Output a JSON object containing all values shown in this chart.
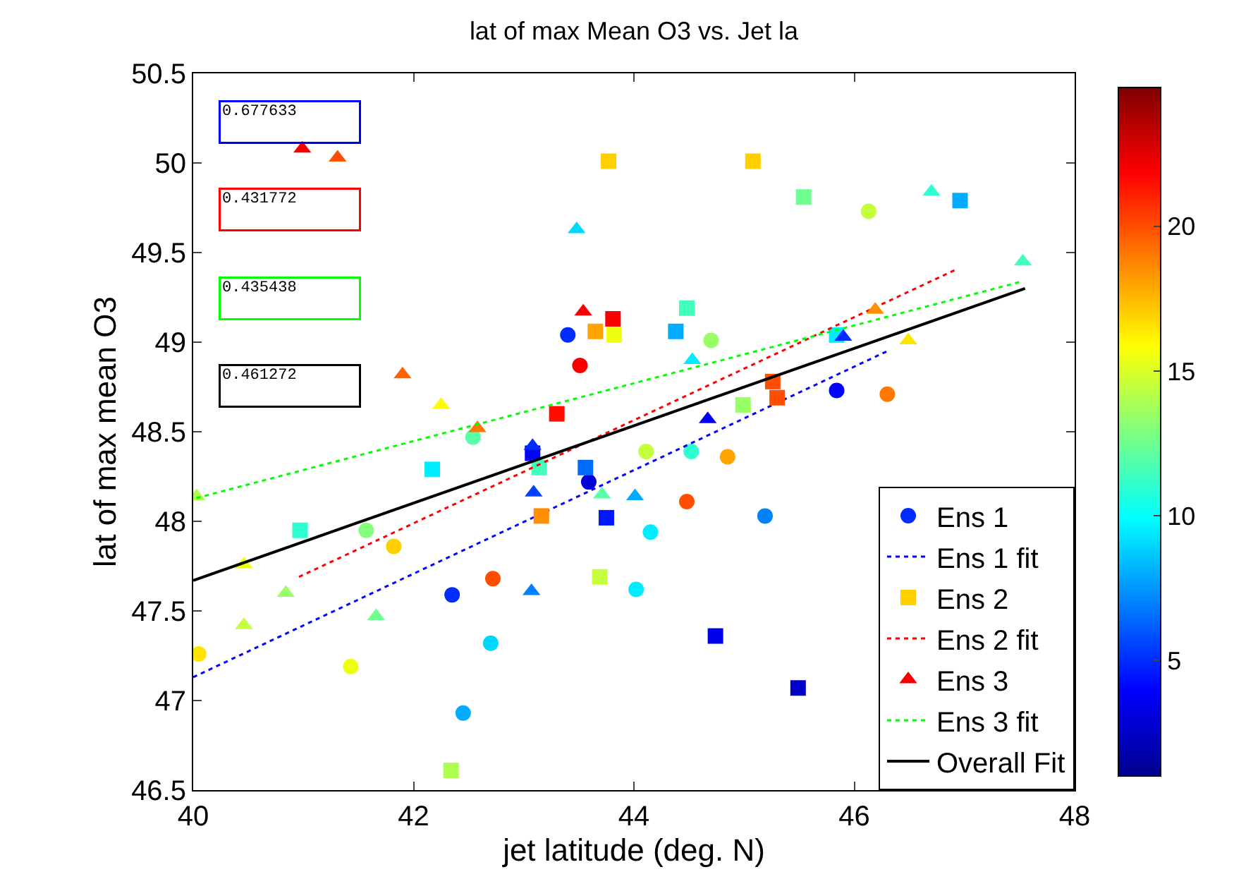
{
  "chart_data": {
    "type": "scatter",
    "title": "lat of max Mean O3 vs. Jet la",
    "xlabel": "jet latitude (deg. N)",
    "ylabel": "lat of max mean O3",
    "xlim": [
      40,
      48
    ],
    "xticks": [
      40,
      42,
      44,
      46,
      48
    ],
    "ylim": [
      46.5,
      50.5
    ],
    "yticks": [
      46.5,
      47,
      47.5,
      48,
      48.5,
      49,
      49.5,
      50,
      50.5
    ],
    "clim": [
      1,
      24.8
    ],
    "cticks": [
      5,
      10,
      15,
      20
    ],
    "grid": false,
    "legend": "bottom right",
    "annotations": [
      "0.677633",
      "0.431772",
      "0.435438",
      "0.461272"
    ],
    "series": [
      {
        "name": "Ens 1",
        "type": "scatter",
        "marker": "circle",
        "x": [
          43.4,
          43.51,
          42.54,
          43.59,
          41.57,
          41.82,
          40.05,
          41.43,
          42.35,
          42.72,
          44.02,
          42.7,
          42.45,
          44.11,
          44.52,
          44.85,
          44.48,
          45.19,
          44.15,
          46.13,
          44.7,
          45.84,
          46.3
        ],
        "values": [
          49.04,
          48.87,
          48.47,
          48.22,
          47.95,
          47.86,
          47.26,
          47.19,
          47.59,
          47.68,
          47.62,
          47.32,
          46.93,
          48.39,
          48.39,
          48.36,
          48.11,
          48.03,
          47.94,
          49.73,
          49.01,
          48.73,
          48.71
        ],
        "colors": [
          "#002cff",
          "#f80000",
          "#59ffa6",
          "#0000da",
          "#84ff7b",
          "#ffcf00",
          "#ffe400",
          "#efff10",
          "#002cff",
          "#ff4e00",
          "#00edff",
          "#00d7ff",
          "#00acff",
          "#c4ff3b",
          "#2effd1",
          "#ffa400",
          "#ff4e00",
          "#0082ff",
          "#00edff",
          "#c4ff3b",
          "#99ff66",
          "#0001ff",
          "#ff7900"
        ]
      },
      {
        "name": "Ens 1 fit",
        "type": "line",
        "color": "#0000ff",
        "line_style": "dotted",
        "x": [
          40,
          46.3
        ],
        "values": [
          47.13,
          48.95
        ]
      },
      {
        "name": "Ens 2",
        "type": "scatter",
        "marker": "square",
        "x": [
          43.77,
          43.65,
          43.81,
          43.82,
          43.3,
          43.08,
          43.14,
          42.17,
          43.56,
          40.97,
          43.16,
          43.75,
          43.69,
          42.34,
          44.74,
          45.49,
          45.08,
          45.54,
          46.96,
          44.48,
          44.38,
          45.84,
          45.26,
          45.3,
          44.99
        ],
        "values": [
          50.01,
          49.06,
          49.13,
          49.04,
          48.6,
          48.38,
          48.3,
          48.29,
          48.3,
          47.95,
          48.03,
          48.02,
          47.69,
          46.61,
          47.36,
          47.07,
          50.01,
          49.81,
          49.79,
          49.19,
          49.06,
          49.04,
          48.78,
          48.69,
          48.65
        ],
        "colors": [
          "#ffcf00",
          "#ffa400",
          "#f80000",
          "#efff10",
          "#ff0e00",
          "#0001ff",
          "#43ffbc",
          "#00edff",
          "#006cff",
          "#2effd1",
          "#ff8f00",
          "#0017ff",
          "#c4ff3b",
          "#afff50",
          "#0000ed",
          "#0000c7",
          "#ffcf00",
          "#6eff91",
          "#00acff",
          "#43ffbc",
          "#00acff",
          "#00edff",
          "#ff4e00",
          "#ff4e00",
          "#99ff66"
        ]
      },
      {
        "name": "Ens 2 fit",
        "type": "line",
        "color": "#ff0000",
        "line_style": "dotted",
        "x": [
          40.96,
          46.94
        ],
        "values": [
          47.69,
          49.41
        ]
      },
      {
        "name": "Ens 3",
        "type": "scatter",
        "marker": "triangle",
        "x": [
          40.99,
          41.31,
          43.48,
          43.54,
          41.9,
          42.25,
          42.58,
          43.08,
          43.09,
          43.71,
          44.01,
          40.03,
          40.46,
          40.84,
          40.46,
          41.66,
          43.07,
          46.7,
          47.53,
          44.53,
          46.19,
          45.9,
          46.49,
          44.67
        ],
        "values": [
          50.08,
          50.03,
          49.63,
          49.17,
          48.82,
          48.65,
          48.52,
          48.42,
          48.16,
          48.15,
          48.14,
          48.14,
          47.76,
          47.6,
          47.42,
          47.47,
          47.61,
          49.84,
          49.45,
          48.9,
          49.18,
          49.03,
          49.01,
          48.57
        ],
        "colors": [
          "#f80000",
          "#ff4e00",
          "#00d7ff",
          "#f80000",
          "#ff6400",
          "#fffa00",
          "#ff7900",
          "#002cff",
          "#0041ff",
          "#59ffa6",
          "#00acff",
          "#afff50",
          "#efff10",
          "#99ff66",
          "#c4ff3b",
          "#6eff91",
          "#0082ff",
          "#2effd1",
          "#43ffbc",
          "#00edff",
          "#ff8f00",
          "#002cff",
          "#ffe400",
          "#0000ed"
        ]
      },
      {
        "name": "Ens 3 fit",
        "type": "line",
        "color": "#00ff00",
        "line_style": "dotted",
        "x": [
          40.03,
          47.53
        ],
        "values": [
          48.13,
          49.34
        ]
      },
      {
        "name": "Overall Fit",
        "type": "line",
        "color": "#000000",
        "line_style": "solid",
        "x": [
          40,
          47.55
        ],
        "values": [
          47.67,
          49.3
        ]
      }
    ]
  }
}
